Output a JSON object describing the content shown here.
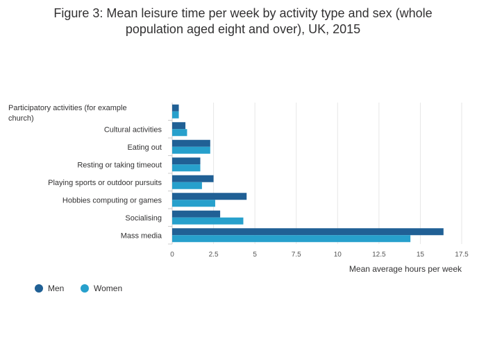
{
  "title_line1": "Figure 3: Mean leisure time per week by activity type and sex (whole",
  "title_line2": "population aged eight and over), UK, 2015",
  "chart_data": {
    "type": "bar",
    "orientation": "horizontal",
    "title": "Figure 3: Mean leisure time per week by activity type and sex (whole population aged eight and over), UK, 2015",
    "categories": [
      "Participatory activities (for example church)",
      "Cultural activities",
      "Eating out",
      "Resting or taking timeout",
      "Playing sports or outdoor pursuits",
      "Hobbies computing or games",
      "Socialising",
      "Mass media"
    ],
    "series": [
      {
        "name": "Men",
        "color": "#206095",
        "values": [
          0.4,
          0.8,
          2.3,
          1.7,
          2.5,
          4.5,
          2.9,
          16.4
        ]
      },
      {
        "name": "Women",
        "color": "#27a0cc",
        "values": [
          0.4,
          0.9,
          2.3,
          1.7,
          1.8,
          2.6,
          4.3,
          14.4
        ]
      }
    ],
    "xlabel": "Mean average hours per week",
    "ylabel": "",
    "xlim": [
      0,
      17.5
    ],
    "xticks": [
      "0",
      "2.5",
      "5",
      "7.5",
      "10",
      "12.5",
      "15",
      "17.5"
    ],
    "grid": true,
    "legend": "bottom-left"
  }
}
